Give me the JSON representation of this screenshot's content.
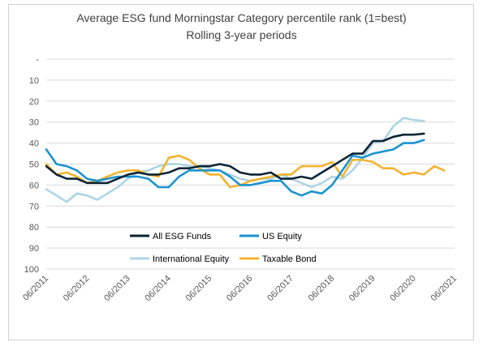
{
  "chart_data": {
    "type": "line",
    "title": "Average ESG fund Morningstar Category percentile rank (1=best)",
    "subtitle": "Rolling 3-year periods",
    "xlabel": "",
    "ylabel": "",
    "y_reversed": true,
    "ylim": [
      0,
      100
    ],
    "y_ticks": [
      "-",
      "10",
      "20",
      "30",
      "40",
      "50",
      "60",
      "70",
      "80",
      "90",
      "100"
    ],
    "x_ticks": [
      "06/2011",
      "06/2012",
      "06/2013",
      "06/2014",
      "06/2015",
      "06/2016",
      "06/2017",
      "06/2018",
      "06/2019",
      "06/2020",
      "06/2021"
    ],
    "x_start": "2011-06",
    "x_step": "quarter",
    "grid": "horizontal",
    "legend_position": "inside-bottom-left",
    "series": [
      {
        "name": "All ESG Funds",
        "color": "#0d2436",
        "values": [
          51,
          55,
          57,
          57,
          59,
          59,
          59,
          57,
          55,
          54,
          55,
          55,
          54,
          52,
          52,
          51,
          51,
          50,
          51,
          54,
          55,
          55,
          54,
          57,
          57,
          56,
          57,
          54,
          51,
          48,
          45,
          45,
          39,
          39,
          37,
          36,
          36,
          35.5
        ]
      },
      {
        "name": "US Equity",
        "color": "#1b93d1",
        "values": [
          43,
          50,
          51,
          53,
          57,
          58,
          57,
          56,
          56,
          56,
          57,
          61,
          61,
          56,
          53,
          53,
          53,
          53,
          56,
          60,
          60,
          59,
          58,
          58,
          63,
          65,
          63,
          64,
          60,
          53,
          46,
          47,
          45,
          44,
          43,
          40,
          40,
          38.5
        ]
      },
      {
        "name": "International Equity",
        "color": "#add5e3",
        "values": [
          62,
          65,
          68,
          64,
          65,
          67,
          64,
          61,
          57,
          54,
          53,
          51,
          50,
          50,
          51,
          51,
          52,
          53,
          55,
          57,
          58,
          57,
          57,
          55,
          57,
          59,
          61,
          59,
          56,
          57,
          53,
          47,
          40,
          39,
          32,
          28,
          29,
          29.5
        ]
      },
      {
        "name": "Taxable Bond",
        "color": "#f2b330",
        "values": [
          50,
          55,
          54,
          56,
          59,
          58,
          56,
          54,
          53,
          53,
          55,
          56,
          47,
          46,
          48,
          52,
          55,
          55,
          61,
          60,
          58,
          57,
          56,
          55,
          55,
          51,
          51,
          51,
          49,
          56,
          48,
          48,
          49,
          52,
          52,
          55,
          54,
          55,
          51,
          53
        ]
      }
    ]
  }
}
